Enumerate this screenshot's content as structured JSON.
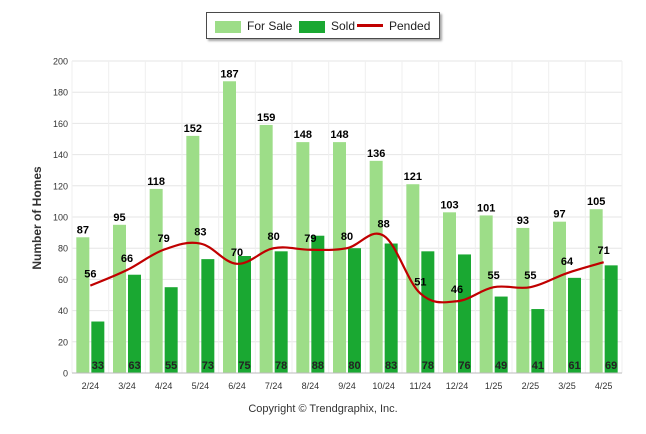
{
  "chart_data": {
    "type": "bar",
    "categories": [
      "2/24",
      "3/24",
      "4/24",
      "5/24",
      "6/24",
      "7/24",
      "8/24",
      "9/24",
      "10/24",
      "11/24",
      "12/24",
      "1/25",
      "2/25",
      "3/25",
      "4/25"
    ],
    "series": [
      {
        "name": "For Sale",
        "type": "bar",
        "color": "#9ddd88",
        "values": [
          87,
          95,
          118,
          152,
          187,
          159,
          148,
          148,
          136,
          121,
          103,
          101,
          93,
          97,
          105
        ]
      },
      {
        "name": "Sold",
        "type": "bar",
        "color": "#1aa832",
        "values": [
          33,
          63,
          55,
          73,
          75,
          78,
          88,
          80,
          83,
          78,
          76,
          49,
          41,
          61,
          69
        ]
      },
      {
        "name": "Pended",
        "type": "line",
        "color": "#c00000",
        "values": [
          56,
          66,
          79,
          83,
          70,
          80,
          79,
          80,
          88,
          51,
          46,
          55,
          55,
          64,
          71
        ]
      }
    ],
    "ylabel": "Number of Homes",
    "xlabel": "",
    "ylim": [
      0,
      200
    ],
    "yticks": [
      0,
      20,
      40,
      60,
      80,
      100,
      120,
      140,
      160,
      180,
      200
    ],
    "grid": true,
    "legend_position": "top-center"
  },
  "footer": {
    "copyright": "Copyright © Trendgraphix, Inc."
  }
}
